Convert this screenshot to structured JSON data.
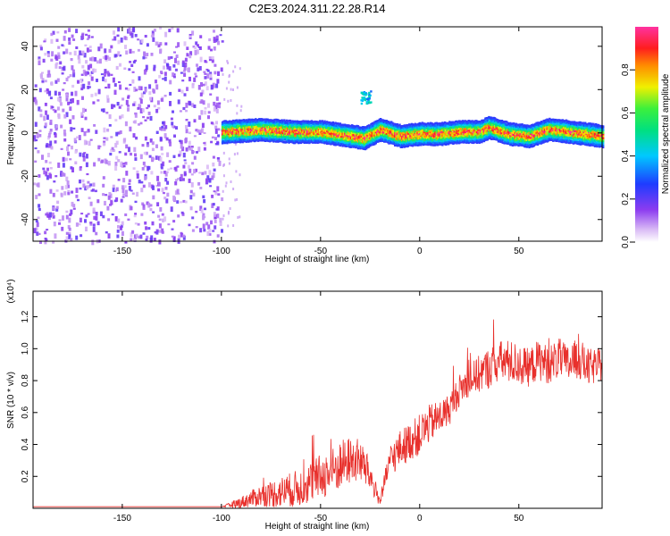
{
  "figure_title": "C2E3.2024.311.22.28.R14",
  "colors": {
    "snr_line": "#e8302c",
    "noise_purple": "#8c3cf0",
    "signal_blue": "#1e3cff"
  },
  "chart_data": [
    {
      "type": "heatmap",
      "title": "C2E3.2024.311.22.28.R14",
      "xlabel": "Height of straight line (km)",
      "ylabel": "Frequency (Hz)",
      "xlim": [
        -195,
        92
      ],
      "ylim": [
        -50,
        49
      ],
      "xticks": [
        "-150",
        "-100",
        "-50",
        "0",
        "50"
      ],
      "yticks": [
        "-40",
        "-20",
        "0",
        "20",
        "40"
      ],
      "colorbar": {
        "label": "Normalized spectral amplitude",
        "range": [
          0,
          1
        ],
        "ticks": [
          "0.0",
          "0.2",
          "0.4",
          "0.6",
          "0.8"
        ],
        "colormap": "rainbow (white-purple-blue-cyan-green-yellow-red-magenta)"
      },
      "regions": [
        {
          "name": "noise",
          "x_range": [
            -195,
            -100
          ],
          "freq_range": [
            -50,
            49
          ],
          "amplitude": [
            0.05,
            0.2
          ]
        },
        {
          "name": "echo-band",
          "x_range": [
            -100,
            92
          ],
          "freq_center": 0,
          "freq_halfwidth": 5,
          "amplitude": [
            0.2,
            1.0
          ]
        },
        {
          "name": "secondary-echo",
          "x_range": [
            -30,
            -25
          ],
          "freq_center": 17,
          "freq_halfwidth": 3,
          "amplitude": [
            0.3,
            0.5
          ]
        }
      ],
      "band_center_freq": [
        {
          "x": -97,
          "f": 1
        },
        {
          "x": -80,
          "f": 2
        },
        {
          "x": -65,
          "f": 1
        },
        {
          "x": -50,
          "f": 1
        },
        {
          "x": -35,
          "f": -1
        },
        {
          "x": -28,
          "f": -2
        },
        {
          "x": -20,
          "f": 2
        },
        {
          "x": -10,
          "f": -1
        },
        {
          "x": 0,
          "f": 0
        },
        {
          "x": 10,
          "f": 0
        },
        {
          "x": 20,
          "f": 1
        },
        {
          "x": 30,
          "f": 1
        },
        {
          "x": 35,
          "f": 3
        },
        {
          "x": 45,
          "f": 0
        },
        {
          "x": 55,
          "f": -1
        },
        {
          "x": 65,
          "f": 2
        },
        {
          "x": 75,
          "f": 1
        },
        {
          "x": 92,
          "f": -1
        }
      ]
    },
    {
      "type": "line",
      "xlabel": "Height of straight line (km)",
      "ylabel": "SNR (10 * v/v)",
      "y_multiplier": "(x10⁴)",
      "xlim": [
        -195,
        92
      ],
      "ylim": [
        0,
        1.36
      ],
      "xticks": [
        "-150",
        "-100",
        "-50",
        "0",
        "50"
      ],
      "yticks": [
        "0.2",
        "0.4",
        "0.6",
        "0.8",
        "1.0",
        "1.2"
      ],
      "series": [
        {
          "x": [
            -195,
            -150,
            -100,
            -92,
            -80,
            -70,
            -60,
            -50,
            -45,
            -40,
            -35,
            -30,
            -25,
            -20,
            -15,
            -10,
            -5,
            0,
            5,
            10,
            15,
            20,
            25,
            30,
            35,
            40,
            45,
            50,
            55,
            60,
            65,
            70,
            75,
            80,
            85,
            92
          ],
          "y": [
            0.01,
            0.01,
            0.01,
            0.03,
            0.08,
            0.1,
            0.13,
            0.2,
            0.22,
            0.27,
            0.3,
            0.3,
            0.2,
            0.04,
            0.3,
            0.37,
            0.42,
            0.46,
            0.53,
            0.57,
            0.62,
            0.74,
            0.8,
            0.84,
            0.88,
            0.92,
            0.92,
            0.9,
            0.88,
            0.93,
            0.9,
            0.94,
            0.9,
            0.94,
            0.88,
            0.9
          ],
          "spread": [
            0,
            0,
            0,
            0.03,
            0.07,
            0.1,
            0.12,
            0.14,
            0.15,
            0.16,
            0.15,
            0.14,
            0.1,
            0.03,
            0.1,
            0.12,
            0.12,
            0.13,
            0.12,
            0.11,
            0.1,
            0.1,
            0.1,
            0.12,
            0.13,
            0.13,
            0.14,
            0.13,
            0.12,
            0.13,
            0.12,
            0.13,
            0.12,
            0.13,
            0.12,
            0.1
          ]
        }
      ]
    }
  ]
}
